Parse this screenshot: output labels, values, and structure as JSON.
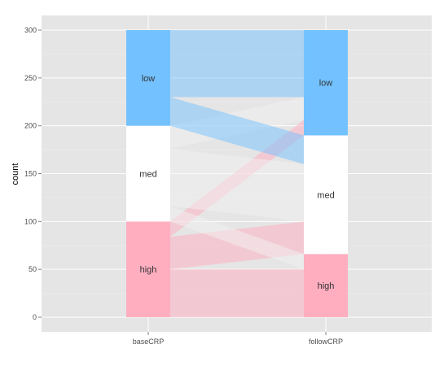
{
  "chart_data": {
    "type": "alluvial",
    "ylabel": "count",
    "xlabel": "",
    "ylim": [
      -15,
      300
    ],
    "yticks": [
      0,
      50,
      100,
      150,
      200,
      250,
      300
    ],
    "axes": [
      "baseCRP",
      "followCRP"
    ],
    "strata": {
      "baseCRP": [
        {
          "label": "high",
          "count": 100
        },
        {
          "label": "med",
          "count": 100
        },
        {
          "label": "low",
          "count": 100
        }
      ],
      "followCRP": [
        {
          "label": "high",
          "count": 66
        },
        {
          "label": "med",
          "count": 124
        },
        {
          "label": "low",
          "count": 110
        }
      ]
    },
    "flows": [
      {
        "from": "high",
        "to": "high",
        "count": 50
      },
      {
        "from": "high",
        "to": "med",
        "count": 34
      },
      {
        "from": "high",
        "to": "low",
        "count": 16
      },
      {
        "from": "med",
        "to": "high",
        "count": 16
      },
      {
        "from": "med",
        "to": "med",
        "count": 60
      },
      {
        "from": "med",
        "to": "low",
        "count": 24
      },
      {
        "from": "low",
        "to": "high",
        "count": 0
      },
      {
        "from": "low",
        "to": "med",
        "count": 30
      },
      {
        "from": "low",
        "to": "low",
        "count": 70
      }
    ],
    "colors": {
      "high": "#ffaec0",
      "med": "#ffffff",
      "low": "#73c2ff",
      "panel": "#e5e5e5",
      "grid": "#ffffff",
      "grid_minor": "#f0f0f0"
    }
  }
}
